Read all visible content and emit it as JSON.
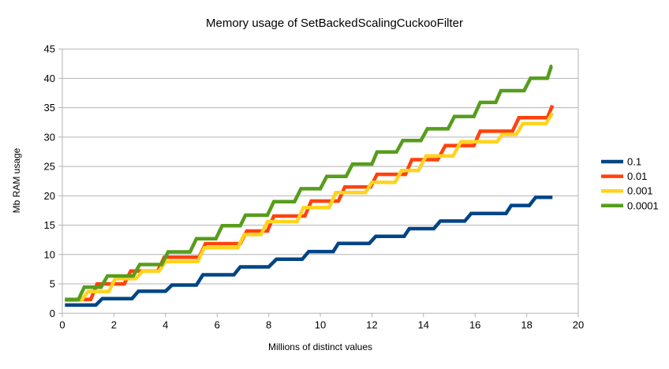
{
  "title": "Memory usage of SetBackedScalingCuckooFilter",
  "colors": {
    "grid": "#b3b3b3",
    "axis": "#b3b3b3",
    "text": "#000000",
    "background": "#ffffff"
  },
  "chart_data": {
    "type": "line",
    "title": "Memory usage of SetBackedScalingCuckooFilter",
    "xlabel": "Millions of distinct values",
    "ylabel": "Mb RAM usage",
    "xlim": [
      0,
      20
    ],
    "ylim": [
      0,
      45
    ],
    "x_ticks": [
      0,
      2,
      4,
      6,
      8,
      10,
      12,
      14,
      16,
      18,
      20
    ],
    "y_ticks": [
      0,
      5,
      10,
      15,
      20,
      25,
      30,
      35,
      40,
      45
    ],
    "grid": "horizontal",
    "legend_position": "right",
    "series": [
      {
        "name": "0.1",
        "color": "#004586",
        "points": [
          [
            0.1,
            1.4
          ],
          [
            1.3,
            1.4
          ],
          [
            1.55,
            2.5
          ],
          [
            2.7,
            2.5
          ],
          [
            2.95,
            3.75
          ],
          [
            4.0,
            3.75
          ],
          [
            4.25,
            4.8
          ],
          [
            5.2,
            4.8
          ],
          [
            5.45,
            6.55
          ],
          [
            6.65,
            6.55
          ],
          [
            6.9,
            7.9
          ],
          [
            8.0,
            7.9
          ],
          [
            8.3,
            9.2
          ],
          [
            9.3,
            9.2
          ],
          [
            9.55,
            10.5
          ],
          [
            10.5,
            10.5
          ],
          [
            10.7,
            11.9
          ],
          [
            11.9,
            11.9
          ],
          [
            12.15,
            13.1
          ],
          [
            13.25,
            13.1
          ],
          [
            13.45,
            14.4
          ],
          [
            14.4,
            14.4
          ],
          [
            14.65,
            15.7
          ],
          [
            15.6,
            15.7
          ],
          [
            15.85,
            17.0
          ],
          [
            17.2,
            17.0
          ],
          [
            17.4,
            18.35
          ],
          [
            18.1,
            18.35
          ],
          [
            18.35,
            19.75
          ],
          [
            19.0,
            19.75
          ]
        ]
      },
      {
        "name": "0.01",
        "color": "#FF420E",
        "points": [
          [
            0.1,
            2.35
          ],
          [
            1.1,
            2.35
          ],
          [
            1.35,
            5.0
          ],
          [
            2.4,
            5.0
          ],
          [
            2.65,
            7.2
          ],
          [
            3.7,
            7.2
          ],
          [
            3.95,
            9.55
          ],
          [
            5.3,
            9.55
          ],
          [
            5.55,
            11.85
          ],
          [
            6.9,
            11.85
          ],
          [
            7.15,
            14.0
          ],
          [
            7.95,
            14.0
          ],
          [
            8.2,
            16.55
          ],
          [
            9.4,
            16.55
          ],
          [
            9.65,
            19.1
          ],
          [
            10.7,
            19.1
          ],
          [
            10.95,
            21.5
          ],
          [
            11.95,
            21.5
          ],
          [
            12.2,
            23.65
          ],
          [
            13.3,
            23.65
          ],
          [
            13.55,
            26.15
          ],
          [
            14.55,
            26.15
          ],
          [
            14.85,
            28.55
          ],
          [
            15.95,
            28.55
          ],
          [
            16.2,
            31.0
          ],
          [
            17.45,
            31.0
          ],
          [
            17.7,
            33.3
          ],
          [
            18.8,
            33.3
          ],
          [
            19.0,
            35.4
          ]
        ]
      },
      {
        "name": "0.001",
        "color": "#FFD320",
        "points": [
          [
            0.1,
            2.25
          ],
          [
            0.75,
            2.25
          ],
          [
            1.0,
            3.7
          ],
          [
            1.8,
            3.7
          ],
          [
            2.05,
            5.9
          ],
          [
            2.85,
            5.9
          ],
          [
            3.1,
            7.15
          ],
          [
            3.75,
            7.15
          ],
          [
            4.0,
            8.8
          ],
          [
            5.25,
            8.8
          ],
          [
            5.5,
            11.15
          ],
          [
            6.8,
            11.15
          ],
          [
            7.05,
            13.4
          ],
          [
            7.7,
            13.4
          ],
          [
            7.95,
            15.6
          ],
          [
            9.1,
            15.6
          ],
          [
            9.35,
            18.0
          ],
          [
            10.35,
            18.0
          ],
          [
            10.6,
            20.55
          ],
          [
            11.75,
            20.55
          ],
          [
            12.0,
            22.3
          ],
          [
            12.9,
            22.3
          ],
          [
            13.15,
            24.3
          ],
          [
            13.8,
            24.3
          ],
          [
            14.1,
            26.8
          ],
          [
            15.15,
            26.8
          ],
          [
            15.45,
            29.2
          ],
          [
            16.85,
            29.2
          ],
          [
            17.05,
            30.45
          ],
          [
            17.6,
            30.45
          ],
          [
            17.85,
            32.3
          ],
          [
            18.75,
            32.3
          ],
          [
            19.0,
            34.1
          ]
        ]
      },
      {
        "name": "0.0001",
        "color": "#579D1C",
        "points": [
          [
            0.1,
            2.3
          ],
          [
            0.62,
            2.3
          ],
          [
            0.85,
            4.45
          ],
          [
            1.5,
            4.45
          ],
          [
            1.75,
            6.35
          ],
          [
            2.75,
            6.35
          ],
          [
            3.0,
            8.3
          ],
          [
            3.85,
            8.3
          ],
          [
            4.1,
            10.45
          ],
          [
            4.95,
            10.45
          ],
          [
            5.2,
            12.7
          ],
          [
            5.95,
            12.7
          ],
          [
            6.2,
            14.9
          ],
          [
            6.9,
            14.9
          ],
          [
            7.1,
            16.7
          ],
          [
            7.95,
            16.7
          ],
          [
            8.2,
            19.0
          ],
          [
            9.0,
            19.0
          ],
          [
            9.25,
            21.2
          ],
          [
            10.0,
            21.2
          ],
          [
            10.25,
            23.3
          ],
          [
            11.0,
            23.3
          ],
          [
            11.25,
            25.4
          ],
          [
            12.0,
            25.4
          ],
          [
            12.2,
            27.45
          ],
          [
            12.95,
            27.45
          ],
          [
            13.2,
            29.4
          ],
          [
            13.9,
            29.4
          ],
          [
            14.15,
            31.4
          ],
          [
            14.95,
            31.4
          ],
          [
            15.2,
            33.5
          ],
          [
            15.95,
            33.5
          ],
          [
            16.2,
            35.9
          ],
          [
            16.8,
            35.9
          ],
          [
            17.0,
            37.9
          ],
          [
            17.9,
            37.9
          ],
          [
            18.15,
            40.0
          ],
          [
            18.8,
            40.0
          ],
          [
            18.95,
            42.0
          ],
          [
            19.0,
            42.05
          ]
        ]
      }
    ]
  }
}
